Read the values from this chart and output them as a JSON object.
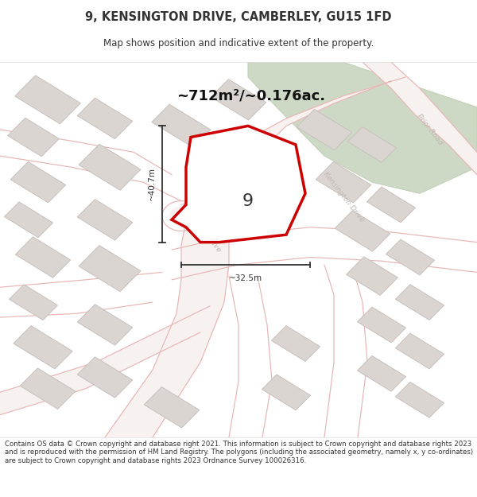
{
  "title": "9, KENSINGTON DRIVE, CAMBERLEY, GU15 1FD",
  "subtitle": "Map shows position and indicative extent of the property.",
  "area_text": "~712m²/~0.176ac.",
  "dim_width": "~32.5m",
  "dim_height": "~40.7m",
  "label_number": "9",
  "footer": "Contains OS data © Crown copyright and database right 2021. This information is subject to Crown copyright and database rights 2023 and is reproduced with the permission of HM Land Registry. The polygons (including the associated geometry, namely x, y co-ordinates) are subject to Crown copyright and database rights 2023 Ordnance Survey 100026316.",
  "bg_color": "#f5f0ee",
  "map_bg": "#f0eceb",
  "road_fill": "#f8f4f2",
  "road_outline": "#e8b8b8",
  "building_fill": "#dbd5d2",
  "building_outline": "#c8c0bc",
  "green_fill": "#cdd9c5",
  "green_outline": "#bfcfb5",
  "highlight_fill": "#ffffff",
  "highlight_outline": "#cc0000",
  "road_label_color": "#c0b8b5",
  "text_color": "#333333",
  "dim_color": "#333333",
  "footer_color": "#333333"
}
